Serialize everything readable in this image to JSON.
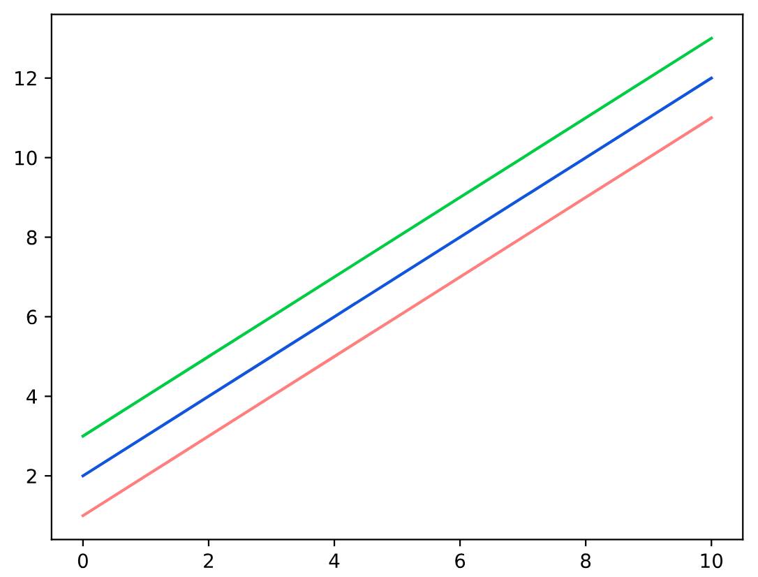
{
  "chart_data": {
    "type": "line",
    "x": [
      0,
      1,
      2,
      3,
      4,
      5,
      6,
      7,
      8,
      9,
      10
    ],
    "series": [
      {
        "color": "#00cc44",
        "values": [
          3,
          4,
          5,
          6,
          7,
          8,
          9,
          10,
          11,
          12,
          13
        ]
      },
      {
        "color": "#1155dd",
        "values": [
          2,
          3,
          4,
          5,
          6,
          7,
          8,
          9,
          10,
          11,
          12
        ]
      },
      {
        "color": "#ff7f7f",
        "values": [
          1,
          2,
          3,
          4,
          5,
          6,
          7,
          8,
          9,
          10,
          11
        ]
      }
    ],
    "xlim": [
      -0.5,
      10.5
    ],
    "ylim": [
      0.4,
      13.6
    ],
    "xticks": [
      0,
      2,
      4,
      6,
      8,
      10
    ],
    "yticks": [
      2,
      4,
      6,
      8,
      10,
      12
    ],
    "grid": false,
    "legend": false
  }
}
